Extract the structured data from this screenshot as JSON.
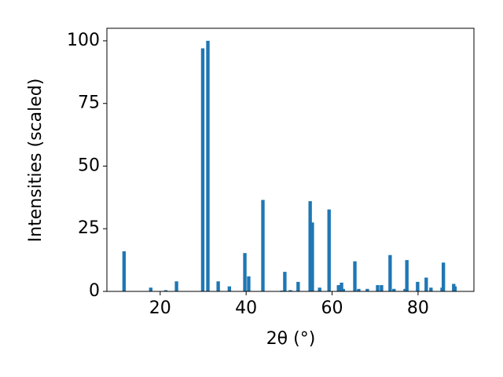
{
  "chart_data": {
    "type": "bar",
    "xlabel": "2θ (°)",
    "ylabel": "Intensities (scaled)",
    "x": [
      11.6,
      17.8,
      21.3,
      23.8,
      29.9,
      31.1,
      33.5,
      36.1,
      39.7,
      40.6,
      43.9,
      48.3,
      49.0,
      50.3,
      52.1,
      54.9,
      55.4,
      57.1,
      59.3,
      61.5,
      62.2,
      62.6,
      65.3,
      66.2,
      68.2,
      70.6,
      71.5,
      73.5,
      74.4,
      77.0,
      77.4,
      79.9,
      81.9,
      83.0,
      85.6,
      85.9,
      88.3,
      88.6
    ],
    "values": [
      16,
      1.5,
      0.5,
      4,
      97,
      100,
      4,
      2,
      15.3,
      6,
      36.5,
      0.3,
      7.8,
      0.5,
      3.8,
      36,
      27.5,
      1.5,
      32.7,
      2.5,
      3.5,
      1,
      12,
      1,
      1,
      2.5,
      2.5,
      14.5,
      1,
      1,
      12.5,
      3.8,
      5.5,
      1.5,
      1.5,
      11.5,
      3,
      2
    ],
    "color": "#1f77b4",
    "xlim": [
      7.6,
      93.0
    ],
    "ylim": [
      0,
      105
    ],
    "xticks": [
      20,
      40,
      60,
      80
    ],
    "yticks": [
      0,
      25,
      50,
      75,
      100
    ],
    "grid": false
  }
}
